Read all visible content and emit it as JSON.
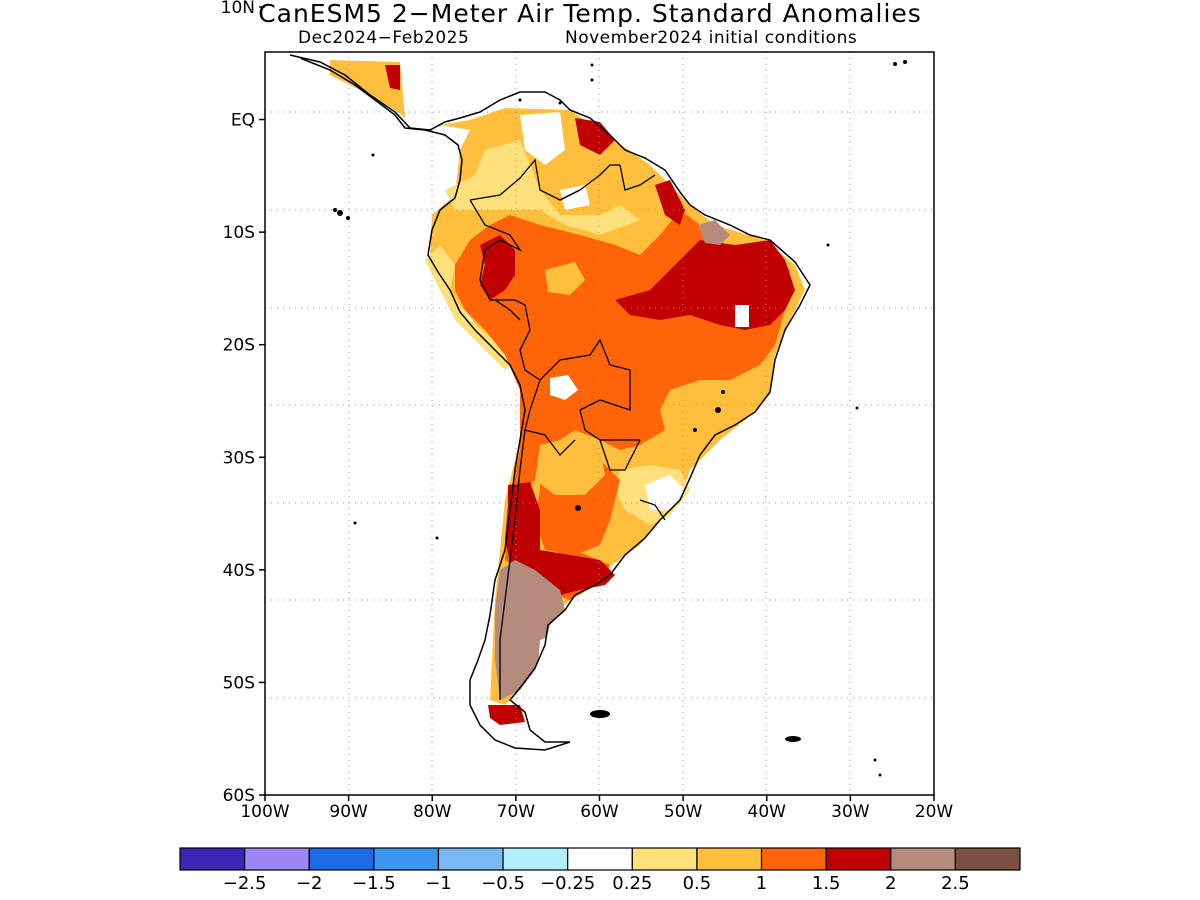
{
  "title": "CanESM5 2−Meter Air Temp. Standard Anomalies",
  "subtitle_period": "Dec2024−Feb2025",
  "subtitle_ic": "November2024 initial conditions",
  "map": {
    "lon_range": [
      -100,
      -20
    ],
    "lat_range": [
      -60,
      6
    ],
    "lon_ticks": [
      {
        "value": -100,
        "label": "100W"
      },
      {
        "value": -90,
        "label": "90W"
      },
      {
        "value": -80,
        "label": "80W"
      },
      {
        "value": -70,
        "label": "70W"
      },
      {
        "value": -60,
        "label": "60W"
      },
      {
        "value": -50,
        "label": "50W"
      },
      {
        "value": -40,
        "label": "40W"
      },
      {
        "value": -30,
        "label": "30W"
      },
      {
        "value": -20,
        "label": "20W"
      }
    ],
    "lat_ticks": [
      {
        "value": 10,
        "label": "10N"
      },
      {
        "value": 0,
        "label": "EQ"
      },
      {
        "value": -10,
        "label": "10S"
      },
      {
        "value": -20,
        "label": "20S"
      },
      {
        "value": -30,
        "label": "30S"
      },
      {
        "value": -40,
        "label": "40S"
      },
      {
        "value": -50,
        "label": "50S"
      },
      {
        "value": -60,
        "label": "60S"
      }
    ],
    "grid": "dotted"
  },
  "colorbar": {
    "colors": [
      "#3b25b9",
      "#9c87f5",
      "#1e6ae6",
      "#3d95f0",
      "#79b7f5",
      "#b2eefb",
      "#ffffff",
      "#ffe07a",
      "#ffbf3d",
      "#ff6408",
      "#c00000",
      "#b48b7d",
      "#7a5040"
    ],
    "labels": [
      "−2.5",
      "−2",
      "−1.5",
      "−1",
      "−0.5",
      "−0.25",
      "0.25",
      "0.5",
      "1",
      "1.5",
      "2",
      "2.5"
    ]
  }
}
